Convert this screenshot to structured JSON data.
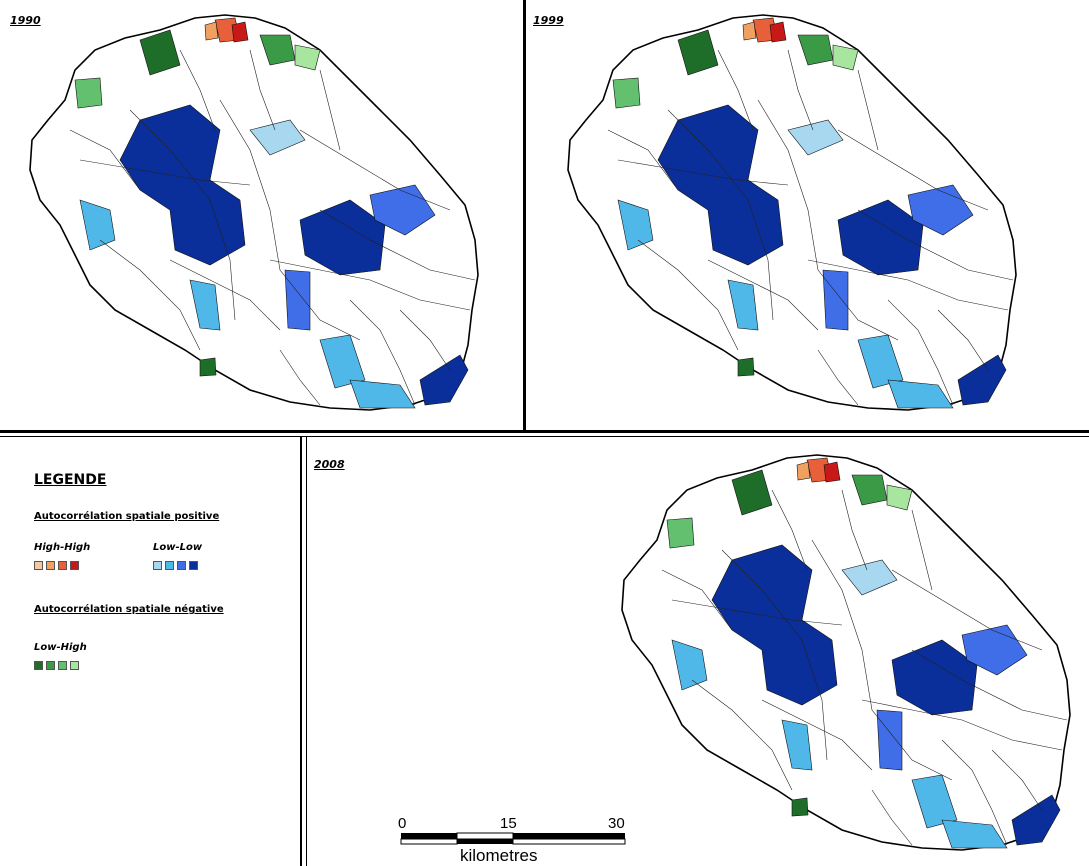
{
  "maps": [
    {
      "year": "1990"
    },
    {
      "year": "1999"
    },
    {
      "year": "2008"
    }
  ],
  "legend": {
    "title": "LEGENDE",
    "positive_heading": "Autocorrélation spatiale positive",
    "negative_heading": "Autocorrélation spatiale négative",
    "categories": [
      {
        "label": "High-High",
        "colors": [
          "#f7c8a0",
          "#f0a060",
          "#e8603a",
          "#c81818"
        ]
      },
      {
        "label": "Low-Low",
        "colors": [
          "#a8d8f0",
          "#50b8e8",
          "#3f6ee8",
          "#0a2f9a"
        ]
      },
      {
        "label": "Low-High",
        "colors": [
          "#1e6e2a",
          "#3a9a46",
          "#62c06e",
          "#a8e6a0"
        ]
      }
    ]
  },
  "scale_bar": {
    "ticks": [
      "0",
      "15",
      "30"
    ],
    "unit": "kilometres"
  }
}
